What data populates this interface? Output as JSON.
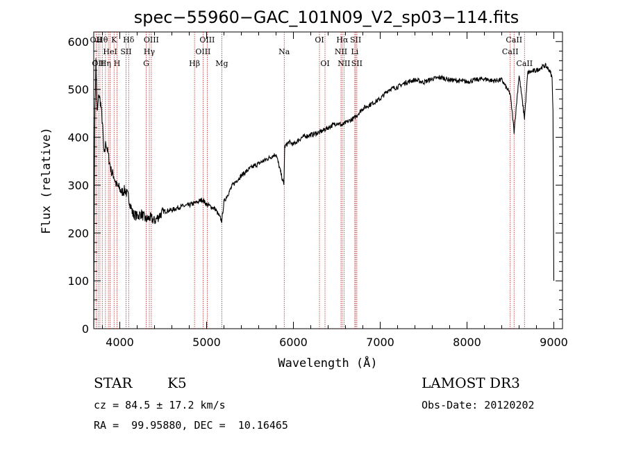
{
  "chart_data": {
    "type": "line",
    "title": "spec−55960−GAC_101N09_V2_sp03−114.fits",
    "xlabel": "Wavelength (Å)",
    "ylabel": "Flux (relative)",
    "xlim": [
      3700,
      9100
    ],
    "ylim": [
      0,
      620
    ],
    "xticks": [
      4000,
      5000,
      6000,
      7000,
      8000,
      9000
    ],
    "yticks": [
      0,
      100,
      200,
      300,
      400,
      500,
      600
    ],
    "grid": false,
    "line_color": "#000000",
    "marker_color": "#b22222",
    "series": [
      {
        "x": [
          3700,
          3710,
          3725,
          3740,
          3760,
          3780,
          3800,
          3820,
          3840,
          3860,
          3880,
          3900,
          3930,
          3960,
          3990,
          4020,
          4060,
          4100,
          4150,
          4200,
          4250,
          4300,
          4350,
          4400,
          4450,
          4500,
          4600,
          4700,
          4800,
          4900,
          4950,
          5000,
          5100,
          5175,
          5200,
          5300,
          5400,
          5500,
          5600,
          5700,
          5800,
          5890,
          5900,
          5950,
          6000,
          6100,
          6200,
          6300,
          6400,
          6500,
          6563,
          6600,
          6700,
          6800,
          6900,
          7000,
          7100,
          7200,
          7300,
          7400,
          7500,
          7600,
          7700,
          7800,
          7900,
          8000,
          8100,
          8200,
          8300,
          8400,
          8498,
          8542,
          8600,
          8662,
          8700,
          8800,
          8900,
          8950,
          8980,
          8990,
          9000
        ],
        "y": [
          5,
          420,
          560,
          450,
          490,
          470,
          430,
          360,
          390,
          370,
          350,
          330,
          320,
          300,
          295,
          285,
          290,
          275,
          240,
          235,
          240,
          228,
          232,
          225,
          235,
          245,
          248,
          255,
          258,
          265,
          270,
          260,
          250,
          225,
          265,
          300,
          320,
          335,
          345,
          355,
          365,
          300,
          380,
          390,
          385,
          400,
          405,
          410,
          420,
          430,
          425,
          430,
          440,
          460,
          470,
          480,
          500,
          505,
          515,
          520,
          515,
          522,
          525,
          520,
          518,
          516,
          520,
          522,
          518,
          520,
          490,
          412,
          530,
          440,
          535,
          540,
          550,
          540,
          525,
          455,
          100
        ]
      }
    ],
    "lines": [
      {
        "w": 3727,
        "l1": "OII",
        "l2": "",
        "l3": ""
      },
      {
        "w": 3750,
        "l1": "",
        "l2": "",
        "l3": "OII"
      },
      {
        "w": 3771,
        "l1": "",
        "l2": "",
        "l3": ""
      },
      {
        "w": 3798,
        "l1": "Hθ",
        "l2": "",
        "l3": ""
      },
      {
        "w": 3835,
        "l1": "",
        "l2": "",
        "l3": "Hη"
      },
      {
        "w": 3869,
        "l1": "",
        "l2": "",
        "l3": ""
      },
      {
        "w": 3889,
        "l1": "",
        "l2": "HeI",
        "l3": ""
      },
      {
        "w": 3934,
        "l1": "K",
        "l2": "",
        "l3": ""
      },
      {
        "w": 3968,
        "l1": "",
        "l2": "",
        "l3": "H"
      },
      {
        "w": 4072,
        "l1": "",
        "l2": "SII",
        "l3": ""
      },
      {
        "w": 4102,
        "l1": "Hδ",
        "l2": "",
        "l3": ""
      },
      {
        "w": 4304,
        "l1": "",
        "l2": "",
        "l3": "G"
      },
      {
        "w": 4340,
        "l1": "",
        "l2": "Hγ",
        "l3": ""
      },
      {
        "w": 4363,
        "l1": "OIII",
        "l2": "",
        "l3": ""
      },
      {
        "w": 4861,
        "l1": "",
        "l2": "",
        "l3": "Hβ"
      },
      {
        "w": 4959,
        "l1": "",
        "l2": "OIII",
        "l3": ""
      },
      {
        "w": 5007,
        "l1": "OIII",
        "l2": "",
        "l3": ""
      },
      {
        "w": 5175,
        "l1": "",
        "l2": "",
        "l3": "Mg"
      },
      {
        "w": 5894,
        "l1": "",
        "l2": "Na",
        "l3": ""
      },
      {
        "w": 6300,
        "l1": "OI",
        "l2": "",
        "l3": ""
      },
      {
        "w": 6364,
        "l1": "",
        "l2": "",
        "l3": "OI"
      },
      {
        "w": 6548,
        "l1": "",
        "l2": "NII",
        "l3": ""
      },
      {
        "w": 6563,
        "l1": "Hα",
        "l2": "",
        "l3": ""
      },
      {
        "w": 6583,
        "l1": "",
        "l2": "",
        "l3": "NII"
      },
      {
        "w": 6707,
        "l1": "",
        "l2": "Li",
        "l3": ""
      },
      {
        "w": 6717,
        "l1": "SII",
        "l2": "",
        "l3": ""
      },
      {
        "w": 6731,
        "l1": "",
        "l2": "",
        "l3": "SII"
      },
      {
        "w": 8498,
        "l1": "",
        "l2": "CaII",
        "l3": ""
      },
      {
        "w": 8542,
        "l1": "CaII",
        "l2": "",
        "l3": ""
      },
      {
        "w": 8662,
        "l1": "",
        "l2": "",
        "l3": "CaII"
      }
    ]
  },
  "info": {
    "class_label": "STAR",
    "subclass": "K5",
    "survey": "LAMOST DR3",
    "cz": "cz = 84.5 ± 17.2 km/s",
    "obs_date": "Obs-Date: 20120202",
    "radec": "RA =  99.95880, DEC =  10.16465"
  }
}
